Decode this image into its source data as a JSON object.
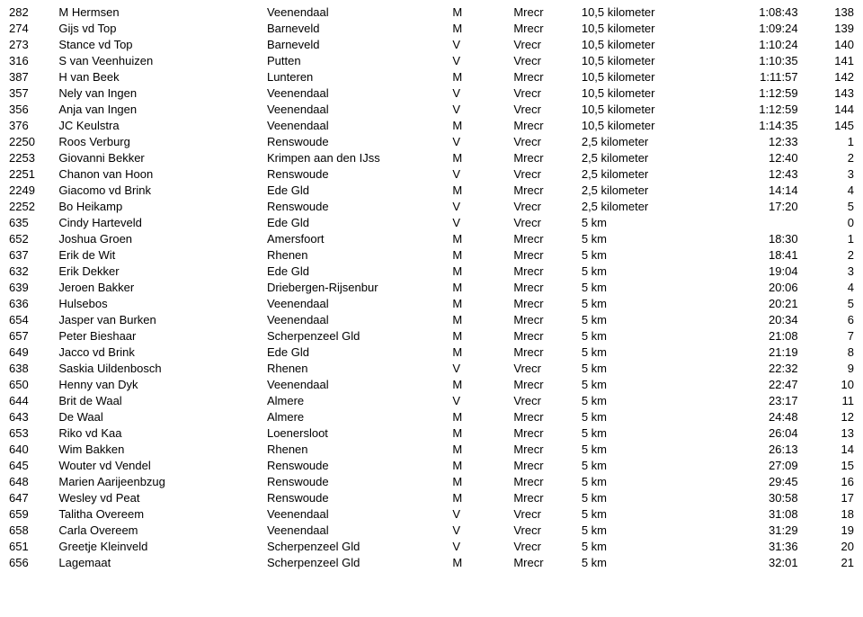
{
  "table": {
    "columns": [
      {
        "key": "rank",
        "class": "col-rank"
      },
      {
        "key": "name",
        "class": "col-name"
      },
      {
        "key": "city",
        "class": "col-city"
      },
      {
        "key": "gender",
        "class": "col-gender"
      },
      {
        "key": "empty",
        "class": "col-empty"
      },
      {
        "key": "cat",
        "class": "col-cat"
      },
      {
        "key": "dist",
        "class": "col-dist"
      },
      {
        "key": "time",
        "class": "col-time"
      },
      {
        "key": "pos",
        "class": "col-pos"
      }
    ],
    "rows": [
      {
        "rank": "282",
        "name": "M Hermsen",
        "city": "Veenendaal",
        "gender": "M",
        "empty": "",
        "cat": "Mrecr",
        "dist": "10,5 kilometer",
        "time": "1:08:43",
        "pos": "138"
      },
      {
        "rank": "274",
        "name": "Gijs vd Top",
        "city": "Barneveld",
        "gender": "M",
        "empty": "",
        "cat": "Mrecr",
        "dist": "10,5 kilometer",
        "time": "1:09:24",
        "pos": "139"
      },
      {
        "rank": "273",
        "name": "Stance vd Top",
        "city": "Barneveld",
        "gender": "V",
        "empty": "",
        "cat": "Vrecr",
        "dist": "10,5 kilometer",
        "time": "1:10:24",
        "pos": "140"
      },
      {
        "rank": "316",
        "name": "S van Veenhuizen",
        "city": "Putten",
        "gender": "V",
        "empty": "",
        "cat": "Vrecr",
        "dist": "10,5 kilometer",
        "time": "1:10:35",
        "pos": "141"
      },
      {
        "rank": "387",
        "name": "H van Beek",
        "city": "Lunteren",
        "gender": "M",
        "empty": "",
        "cat": "Mrecr",
        "dist": "10,5 kilometer",
        "time": "1:11:57",
        "pos": "142"
      },
      {
        "rank": "357",
        "name": "Nely van Ingen",
        "city": "Veenendaal",
        "gender": "V",
        "empty": "",
        "cat": "Vrecr",
        "dist": "10,5 kilometer",
        "time": "1:12:59",
        "pos": "143"
      },
      {
        "rank": "356",
        "name": "Anja van Ingen",
        "city": "Veenendaal",
        "gender": "V",
        "empty": "",
        "cat": "Vrecr",
        "dist": "10,5 kilometer",
        "time": "1:12:59",
        "pos": "144"
      },
      {
        "rank": "376",
        "name": "JC Keulstra",
        "city": "Veenendaal",
        "gender": "M",
        "empty": "",
        "cat": "Mrecr",
        "dist": "10,5 kilometer",
        "time": "1:14:35",
        "pos": "145"
      },
      {
        "rank": "2250",
        "name": "Roos Verburg",
        "city": "Renswoude",
        "gender": "V",
        "empty": "",
        "cat": "Vrecr",
        "dist": "2,5 kilometer",
        "time": "12:33",
        "pos": "1"
      },
      {
        "rank": "2253",
        "name": "Giovanni Bekker",
        "city": "Krimpen aan den IJss",
        "gender": "M",
        "empty": "",
        "cat": "Mrecr",
        "dist": "2,5 kilometer",
        "time": "12:40",
        "pos": "2"
      },
      {
        "rank": "2251",
        "name": "Chanon van Hoon",
        "city": "Renswoude",
        "gender": "V",
        "empty": "",
        "cat": "Vrecr",
        "dist": "2,5 kilometer",
        "time": "12:43",
        "pos": "3"
      },
      {
        "rank": "2249",
        "name": "Giacomo vd Brink",
        "city": "Ede Gld",
        "gender": "M",
        "empty": "",
        "cat": "Mrecr",
        "dist": "2,5 kilometer",
        "time": "14:14",
        "pos": "4"
      },
      {
        "rank": "2252",
        "name": "Bo Heikamp",
        "city": "Renswoude",
        "gender": "V",
        "empty": "",
        "cat": "Vrecr",
        "dist": "2,5 kilometer",
        "time": "17:20",
        "pos": "5"
      },
      {
        "rank": "635",
        "name": "Cindy Harteveld",
        "city": "Ede Gld",
        "gender": "V",
        "empty": "",
        "cat": "Vrecr",
        "dist": "5 km",
        "time": "",
        "pos": "0"
      },
      {
        "rank": "652",
        "name": "Joshua Groen",
        "city": "Amersfoort",
        "gender": "M",
        "empty": "",
        "cat": "Mrecr",
        "dist": "5 km",
        "time": "18:30",
        "pos": "1"
      },
      {
        "rank": "637",
        "name": "Erik de Wit",
        "city": "Rhenen",
        "gender": "M",
        "empty": "",
        "cat": "Mrecr",
        "dist": "5 km",
        "time": "18:41",
        "pos": "2"
      },
      {
        "rank": "632",
        "name": "Erik Dekker",
        "city": "Ede Gld",
        "gender": "M",
        "empty": "",
        "cat": "Mrecr",
        "dist": "5 km",
        "time": "19:04",
        "pos": "3"
      },
      {
        "rank": "639",
        "name": "Jeroen Bakker",
        "city": "Driebergen-Rijsenbur",
        "gender": "M",
        "empty": "",
        "cat": "Mrecr",
        "dist": "5 km",
        "time": "20:06",
        "pos": "4"
      },
      {
        "rank": "636",
        "name": "Hulsebos",
        "city": "Veenendaal",
        "gender": "M",
        "empty": "",
        "cat": "Mrecr",
        "dist": "5 km",
        "time": "20:21",
        "pos": "5"
      },
      {
        "rank": "654",
        "name": "Jasper van Burken",
        "city": "Veenendaal",
        "gender": "M",
        "empty": "",
        "cat": "Mrecr",
        "dist": "5 km",
        "time": "20:34",
        "pos": "6"
      },
      {
        "rank": "657",
        "name": "Peter Bieshaar",
        "city": "Scherpenzeel Gld",
        "gender": "M",
        "empty": "",
        "cat": "Mrecr",
        "dist": "5 km",
        "time": "21:08",
        "pos": "7"
      },
      {
        "rank": "649",
        "name": "Jacco vd Brink",
        "city": "Ede Gld",
        "gender": "M",
        "empty": "",
        "cat": "Mrecr",
        "dist": "5 km",
        "time": "21:19",
        "pos": "8"
      },
      {
        "rank": "638",
        "name": "Saskia Uildenbosch",
        "city": "Rhenen",
        "gender": "V",
        "empty": "",
        "cat": "Vrecr",
        "dist": "5 km",
        "time": "22:32",
        "pos": "9"
      },
      {
        "rank": "650",
        "name": "Henny van Dyk",
        "city": "Veenendaal",
        "gender": "M",
        "empty": "",
        "cat": "Mrecr",
        "dist": "5 km",
        "time": "22:47",
        "pos": "10"
      },
      {
        "rank": "644",
        "name": "Brit de Waal",
        "city": "Almere",
        "gender": "V",
        "empty": "",
        "cat": "Vrecr",
        "dist": "5 km",
        "time": "23:17",
        "pos": "11"
      },
      {
        "rank": "643",
        "name": "De Waal",
        "city": "Almere",
        "gender": "M",
        "empty": "",
        "cat": "Mrecr",
        "dist": "5 km",
        "time": "24:48",
        "pos": "12"
      },
      {
        "rank": "653",
        "name": "Riko vd Kaa",
        "city": "Loenersloot",
        "gender": "M",
        "empty": "",
        "cat": "Mrecr",
        "dist": "5 km",
        "time": "26:04",
        "pos": "13"
      },
      {
        "rank": "640",
        "name": "Wim Bakken",
        "city": "Rhenen",
        "gender": "M",
        "empty": "",
        "cat": "Mrecr",
        "dist": "5 km",
        "time": "26:13",
        "pos": "14"
      },
      {
        "rank": "645",
        "name": "Wouter vd Vendel",
        "city": "Renswoude",
        "gender": "M",
        "empty": "",
        "cat": "Mrecr",
        "dist": "5 km",
        "time": "27:09",
        "pos": "15"
      },
      {
        "rank": "648",
        "name": "Marien Aarijeenbzug",
        "city": "Renswoude",
        "gender": "M",
        "empty": "",
        "cat": "Mrecr",
        "dist": "5 km",
        "time": "29:45",
        "pos": "16"
      },
      {
        "rank": "647",
        "name": "Wesley vd Peat",
        "city": "Renswoude",
        "gender": "M",
        "empty": "",
        "cat": "Mrecr",
        "dist": "5 km",
        "time": "30:58",
        "pos": "17"
      },
      {
        "rank": "659",
        "name": "Talitha Overeem",
        "city": "Veenendaal",
        "gender": "V",
        "empty": "",
        "cat": "Vrecr",
        "dist": "5 km",
        "time": "31:08",
        "pos": "18"
      },
      {
        "rank": "658",
        "name": "Carla Overeem",
        "city": "Veenendaal",
        "gender": "V",
        "empty": "",
        "cat": "Vrecr",
        "dist": "5 km",
        "time": "31:29",
        "pos": "19"
      },
      {
        "rank": "651",
        "name": "Greetje Kleinveld",
        "city": "Scherpenzeel Gld",
        "gender": "V",
        "empty": "",
        "cat": "Vrecr",
        "dist": "5 km",
        "time": "31:36",
        "pos": "20"
      },
      {
        "rank": "656",
        "name": "Lagemaat",
        "city": "Scherpenzeel Gld",
        "gender": "M",
        "empty": "",
        "cat": "Mrecr",
        "dist": "5 km",
        "time": "32:01",
        "pos": "21"
      }
    ]
  }
}
